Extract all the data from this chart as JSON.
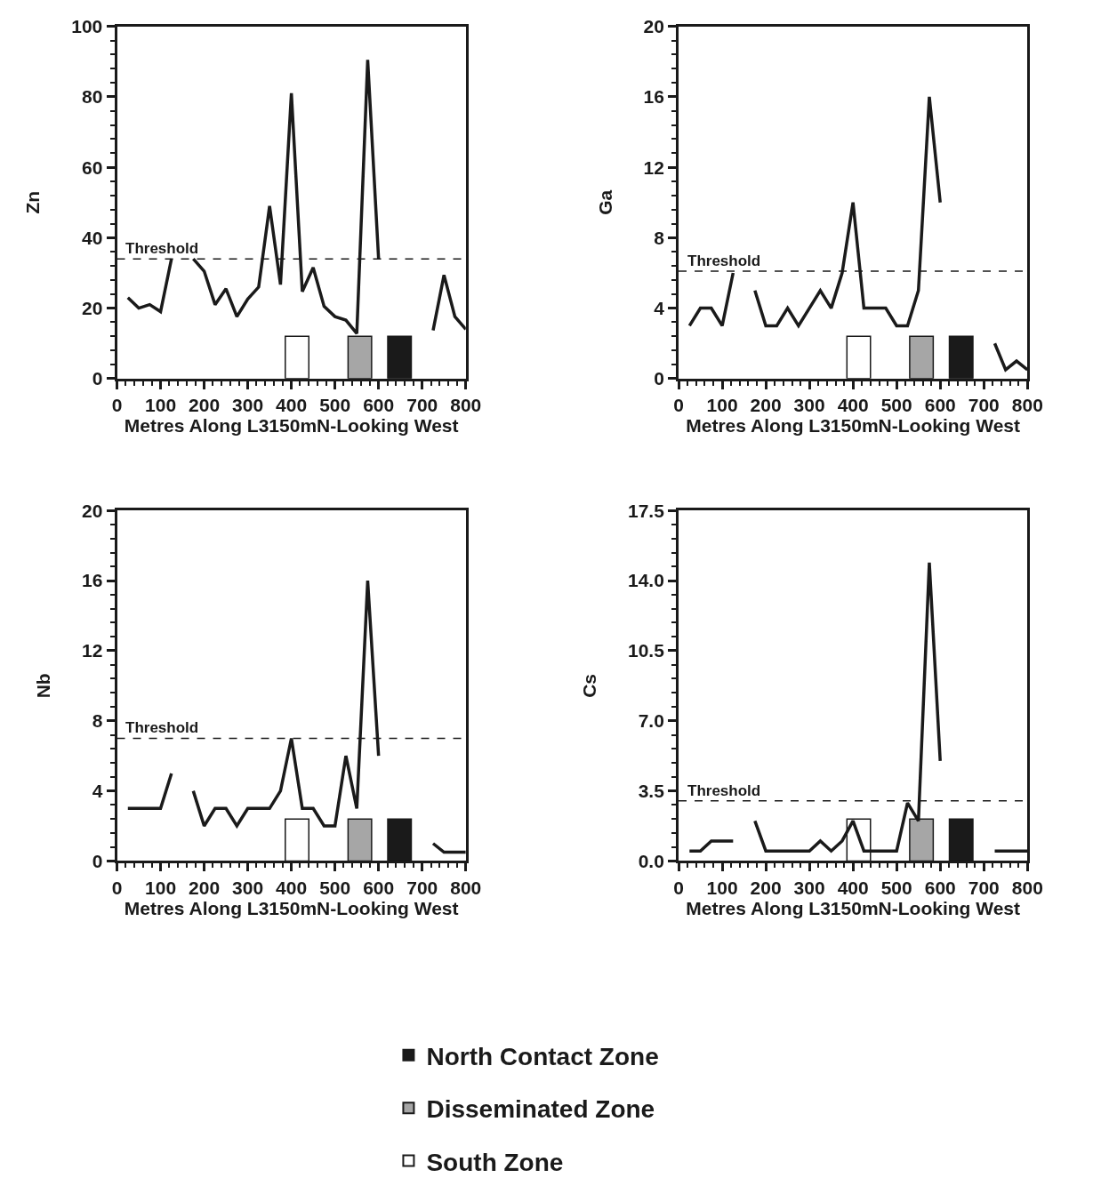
{
  "chart_data": [
    {
      "type": "line",
      "ylabel": "Zn",
      "xlabel": "Metres Along L3150mN-Looking West",
      "xlim": [
        0,
        800
      ],
      "xticks": [
        0,
        100,
        200,
        300,
        400,
        500,
        600,
        700,
        800
      ],
      "ylim": [
        0,
        100
      ],
      "yticks": [
        0,
        20,
        40,
        60,
        80,
        100
      ],
      "legend": "bottom",
      "marker": "none",
      "line_style": "solid",
      "x": [
        25,
        50,
        75,
        100,
        125,
        150,
        175,
        200,
        225,
        250,
        275,
        300,
        325,
        350,
        375,
        400,
        425,
        450,
        475,
        500,
        525,
        550,
        575,
        600,
        625,
        650,
        675,
        700,
        725,
        750,
        775,
        800
      ],
      "ref_lines": [
        {
          "axis": "y",
          "value": 34,
          "label": "Threshold",
          "line_style": "dashed"
        }
      ],
      "series": [
        {
          "color": "#1a1a1a",
          "values": [
            23,
            20,
            21,
            19,
            34,
            null,
            34,
            30.5,
            21,
            25.5,
            17.6,
            22.6,
            26,
            49,
            26.7,
            81,
            24.7,
            31.5,
            20.5,
            17.6,
            16.6,
            12.8,
            90.5,
            34,
            null,
            null,
            null,
            null,
            13.7,
            29.4,
            17.6,
            14
          ]
        },
        {
          "type": "bar",
          "name": "North Contact Zone",
          "color": "#1a1a1a",
          "x": [
            648
          ],
          "values": [
            12
          ]
        },
        {
          "type": "bar",
          "name": "Disseminated Zone",
          "color": "#a6a6a6",
          "x": [
            557
          ],
          "values": [
            12
          ]
        },
        {
          "type": "bar",
          "name": "South Zone",
          "color": "#ffffff",
          "x": [
            413
          ],
          "values": [
            12
          ]
        }
      ]
    },
    {
      "type": "line",
      "ylabel": "Ga",
      "xlabel": "Metres Along L3150mN-Looking West",
      "xlim": [
        0,
        800
      ],
      "xticks": [
        0,
        100,
        200,
        300,
        400,
        500,
        600,
        700,
        800
      ],
      "ylim": [
        0,
        20
      ],
      "yticks": [
        0,
        4,
        8,
        12,
        16,
        20
      ],
      "legend": "bottom",
      "marker": "none",
      "line_style": "solid",
      "x": [
        25,
        50,
        75,
        100,
        125,
        150,
        175,
        200,
        225,
        250,
        275,
        300,
        325,
        350,
        375,
        400,
        425,
        450,
        475,
        500,
        525,
        550,
        575,
        600,
        625,
        650,
        675,
        700,
        725,
        750,
        775,
        800
      ],
      "ref_lines": [
        {
          "axis": "y",
          "value": 6.1,
          "label": "Threshold",
          "line_style": "dashed"
        }
      ],
      "series": [
        {
          "color": "#1a1a1a",
          "values": [
            3,
            4,
            4,
            3,
            6,
            null,
            5,
            3,
            3,
            4,
            3,
            4,
            5,
            4,
            6,
            10,
            4,
            4,
            4,
            3,
            3,
            5,
            16,
            10,
            null,
            null,
            null,
            null,
            2,
            0.5,
            1,
            0.5
          ]
        },
        {
          "type": "bar",
          "name": "North Contact Zone",
          "color": "#1a1a1a",
          "x": [
            648
          ],
          "values": [
            2.4
          ]
        },
        {
          "type": "bar",
          "name": "Disseminated Zone",
          "color": "#a6a6a6",
          "x": [
            557
          ],
          "values": [
            2.4
          ]
        },
        {
          "type": "bar",
          "name": "South Zone",
          "color": "#ffffff",
          "x": [
            413
          ],
          "values": [
            2.4
          ]
        }
      ]
    },
    {
      "type": "line",
      "ylabel": "Nb",
      "xlabel": "Metres Along L3150mN-Looking West",
      "xlim": [
        0,
        800
      ],
      "xticks": [
        0,
        100,
        200,
        300,
        400,
        500,
        600,
        700,
        800
      ],
      "ylim": [
        0,
        20
      ],
      "yticks": [
        0,
        4,
        8,
        12,
        16,
        20
      ],
      "legend": "bottom",
      "marker": "none",
      "line_style": "solid",
      "x": [
        25,
        50,
        75,
        100,
        125,
        150,
        175,
        200,
        225,
        250,
        275,
        300,
        325,
        350,
        375,
        400,
        425,
        450,
        475,
        500,
        525,
        550,
        575,
        600,
        625,
        650,
        675,
        700,
        725,
        750,
        775,
        800
      ],
      "ref_lines": [
        {
          "axis": "y",
          "value": 7,
          "label": "Threshold",
          "line_style": "dashed"
        }
      ],
      "series": [
        {
          "color": "#1a1a1a",
          "values": [
            3,
            3,
            3,
            3,
            5,
            null,
            4,
            2,
            3,
            3,
            2,
            3,
            3,
            3,
            4,
            7,
            3,
            3,
            2,
            2,
            6,
            3,
            16,
            6,
            null,
            null,
            null,
            null,
            1,
            0.5,
            0.5,
            0.5
          ]
        },
        {
          "type": "bar",
          "name": "North Contact Zone",
          "color": "#1a1a1a",
          "x": [
            648
          ],
          "values": [
            2.4
          ]
        },
        {
          "type": "bar",
          "name": "Disseminated Zone",
          "color": "#a6a6a6",
          "x": [
            557
          ],
          "values": [
            2.4
          ]
        },
        {
          "type": "bar",
          "name": "South Zone",
          "color": "#ffffff",
          "x": [
            413
          ],
          "values": [
            2.4
          ]
        }
      ]
    },
    {
      "type": "line",
      "ylabel": "Cs",
      "xlabel": "Metres Along L3150mN-Looking West",
      "xlim": [
        0,
        800
      ],
      "xticks": [
        0,
        100,
        200,
        300,
        400,
        500,
        600,
        700,
        800
      ],
      "ylim": [
        0,
        17.5
      ],
      "yticks": [
        {
          "value": 0,
          "label": "0.0"
        },
        3.5,
        {
          "value": 7,
          "label": "7.0"
        },
        10.5,
        {
          "value": 14,
          "label": "14.0"
        },
        17.5
      ],
      "legend": "bottom",
      "marker": "none",
      "line_style": "solid",
      "x": [
        25,
        50,
        75,
        100,
        125,
        150,
        175,
        200,
        225,
        250,
        275,
        300,
        325,
        350,
        375,
        400,
        425,
        450,
        475,
        500,
        525,
        550,
        575,
        600,
        625,
        650,
        675,
        700,
        725,
        750,
        775,
        800
      ],
      "ref_lines": [
        {
          "axis": "y",
          "value": 3,
          "label": "Threshold",
          "line_style": "dashed"
        }
      ],
      "series": [
        {
          "color": "#1a1a1a",
          "values": [
            0.5,
            0.5,
            1,
            1,
            1,
            null,
            2,
            0.5,
            0.5,
            0.5,
            0.5,
            0.5,
            1,
            0.5,
            1,
            2,
            0.5,
            0.5,
            0.5,
            0.5,
            2.9,
            2,
            14.9,
            5,
            null,
            null,
            null,
            null,
            0.5,
            0.5,
            0.5,
            0.5
          ]
        },
        {
          "type": "bar",
          "name": "North Contact Zone",
          "color": "#1a1a1a",
          "x": [
            648
          ],
          "values": [
            2.1
          ]
        },
        {
          "type": "bar",
          "name": "Disseminated Zone",
          "color": "#a6a6a6",
          "x": [
            557
          ],
          "values": [
            2.1
          ]
        },
        {
          "type": "bar",
          "name": "South Zone",
          "color": "#ffffff",
          "x": [
            413
          ],
          "values": [
            2.1
          ]
        }
      ]
    }
  ]
}
